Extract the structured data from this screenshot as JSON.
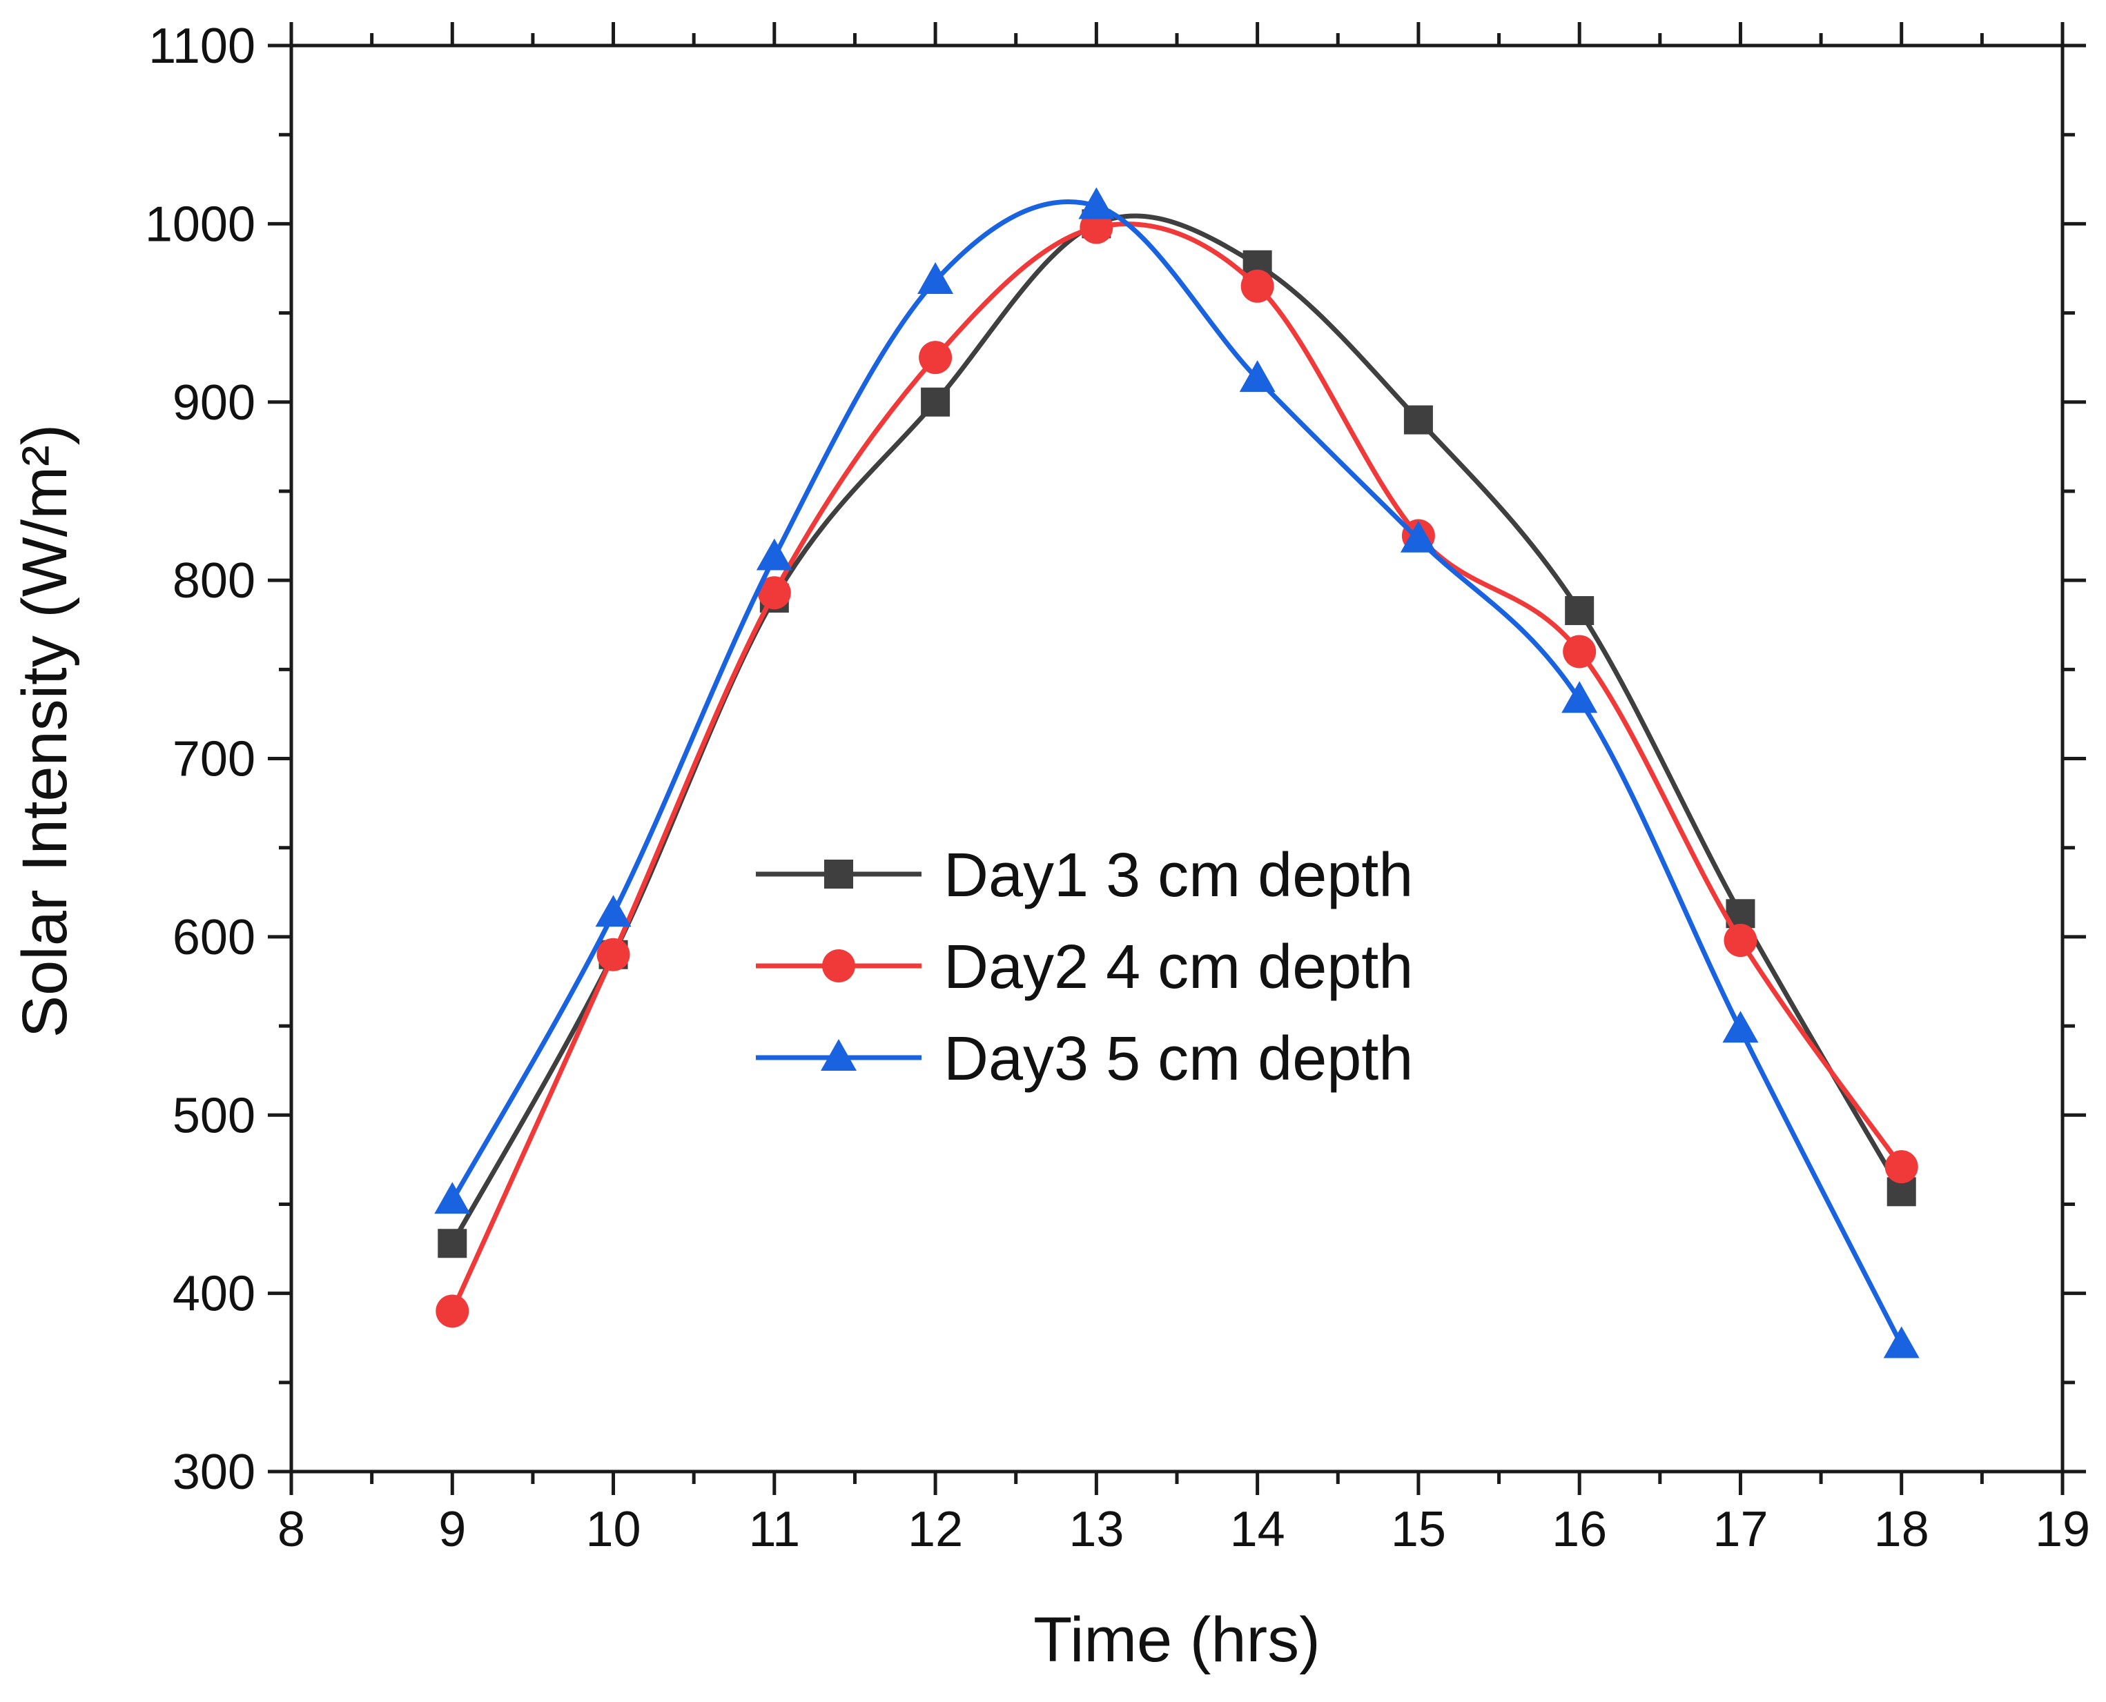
{
  "chart_data": {
    "type": "line",
    "xlabel": "Time (hrs)",
    "ylabel": "Solar Intensity (W/m²)",
    "xlim": [
      8,
      19
    ],
    "ylim": [
      300,
      1100
    ],
    "x_ticks": [
      8,
      9,
      10,
      11,
      12,
      13,
      14,
      15,
      16,
      17,
      18,
      19
    ],
    "y_ticks": [
      300,
      400,
      500,
      600,
      700,
      800,
      900,
      1000,
      1100
    ],
    "x_ticks_labels": [
      "8",
      "9",
      "10",
      "11",
      "12",
      "13",
      "14",
      "15",
      "16",
      "17",
      "18",
      "19"
    ],
    "y_ticks_labels": [
      "300",
      "400",
      "500",
      "600",
      "700",
      "800",
      "900",
      "1000",
      "1100"
    ],
    "x": [
      9,
      10,
      11,
      12,
      13,
      14,
      15,
      16,
      17,
      18
    ],
    "legend_position": "center",
    "grid": false,
    "smooth": true,
    "series": [
      {
        "name": "Day1 3 cm depth",
        "marker": "square",
        "color": "#3f3f3f",
        "values": [
          428,
          590,
          790,
          900,
          1000,
          977,
          890,
          783,
          613,
          457
        ]
      },
      {
        "name": "Day2 4 cm depth",
        "marker": "circle",
        "color": "#f03a3a",
        "values": [
          390,
          590,
          793,
          925,
          998,
          965,
          825,
          760,
          598,
          471
        ]
      },
      {
        "name": "Day3 5 cm depth",
        "marker": "triangle",
        "color": "#1a63e0",
        "values": [
          452,
          613,
          813,
          968,
          1010,
          913,
          823,
          733,
          548,
          371
        ]
      }
    ]
  }
}
